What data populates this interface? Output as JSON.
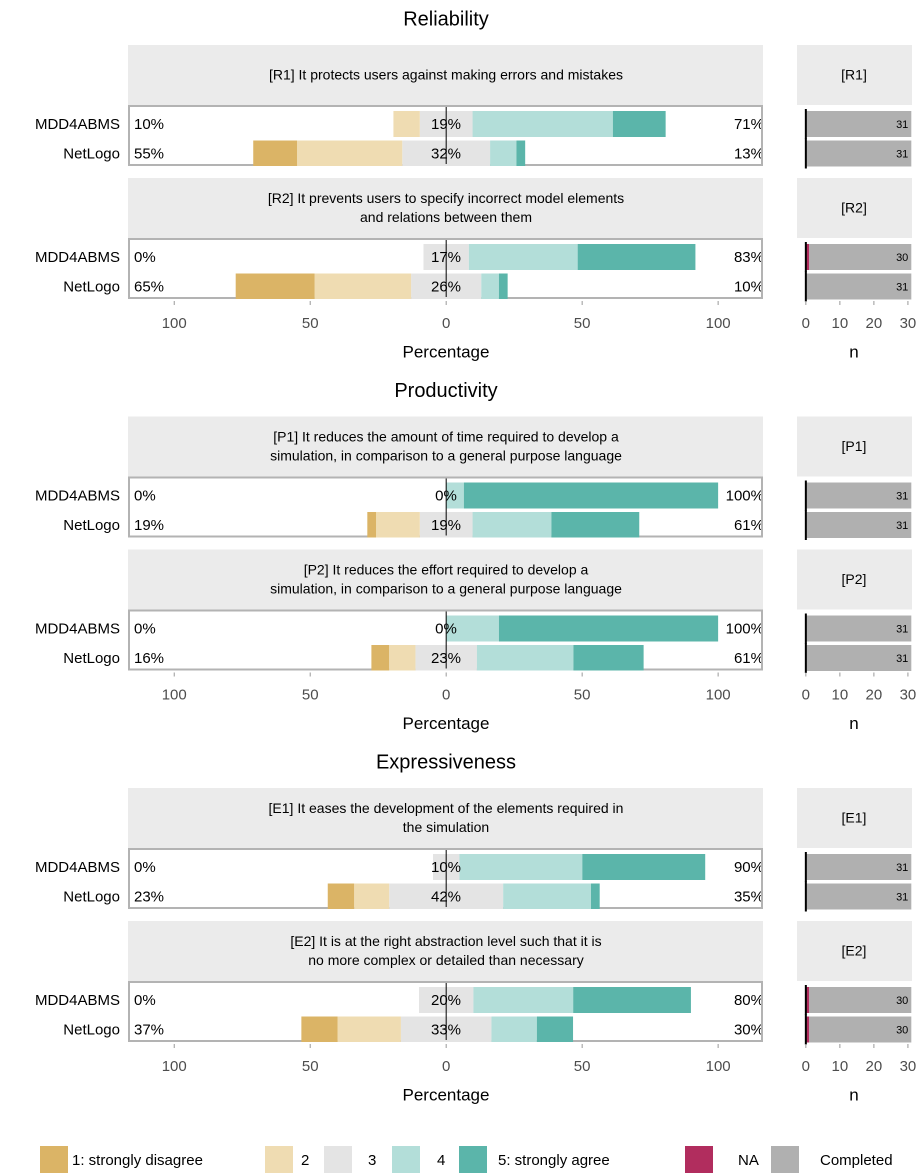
{
  "chart_data": [
    {
      "type": "likert",
      "title": "Reliability",
      "xlabel": "Percentage",
      "nlabel": "n",
      "xlim": [
        -117,
        116.5
      ],
      "xticks": [
        {
          "value": -100,
          "label": "100"
        },
        {
          "value": -50,
          "label": "50"
        },
        0,
        50,
        100
      ],
      "nlim": [
        -2.6,
        31.2
      ],
      "nticks": [
        0,
        10,
        20,
        30
      ],
      "items": [
        {
          "label": [
            "[R1] It protects users against making errors and mistakes"
          ],
          "short": "[R1]",
          "rows": [
            {
              "name": "MDD4ABMS",
              "values": [
                0,
                9.7,
                19.4,
                51.6,
                19.4
              ],
              "summary": [
                9.7,
                19.4,
                71.0
              ],
              "summary_labels": [
                "10%",
                "19%",
                "71%"
              ],
              "na": 0,
              "completed": 31
            },
            {
              "name": "NetLogo",
              "values": [
                16.1,
                38.7,
                32.3,
                9.7,
                3.2
              ],
              "summary": [
                54.8,
                32.3,
                12.9
              ],
              "summary_labels": [
                "55%",
                "32%",
                "13%"
              ],
              "na": 0,
              "completed": 31
            }
          ]
        },
        {
          "label": [
            "[R2] It prevents users to specify incorrect model elements",
            "and relations between them"
          ],
          "short": "[R2]",
          "rows": [
            {
              "name": "MDD4ABMS",
              "values": [
                0,
                0,
                16.7,
                40.0,
                43.3
              ],
              "summary": [
                0,
                16.7,
                83.3
              ],
              "summary_labels": [
                "0%",
                "17%",
                "83%"
              ],
              "na": 1,
              "completed": 30
            },
            {
              "name": "NetLogo",
              "values": [
                29.0,
                35.5,
                25.8,
                6.5,
                3.2
              ],
              "summary": [
                64.5,
                25.8,
                9.7
              ],
              "summary_labels": [
                "65%",
                "26%",
                "10%"
              ],
              "na": 0,
              "completed": 31
            }
          ]
        }
      ]
    },
    {
      "type": "likert",
      "title": "Productivity",
      "xlabel": "Percentage",
      "nlabel": "n",
      "xlim": [
        -117,
        116.5
      ],
      "xticks": [
        {
          "value": -100,
          "label": "100"
        },
        {
          "value": -50,
          "label": "50"
        },
        0,
        50,
        100
      ],
      "nlim": [
        -2.6,
        31.2
      ],
      "nticks": [
        0,
        10,
        20,
        30
      ],
      "items": [
        {
          "label": [
            "[P1] It reduces the amount of time required to develop a",
            "simulation, in comparison to a general purpose language"
          ],
          "short": "[P1]",
          "rows": [
            {
              "name": "MDD4ABMS",
              "values": [
                0,
                0,
                0,
                6.5,
                93.5
              ],
              "summary": [
                0,
                0,
                100
              ],
              "summary_labels": [
                "0%",
                "0%",
                "100%"
              ],
              "na": 0,
              "completed": 31
            },
            {
              "name": "NetLogo",
              "values": [
                3.2,
                16.1,
                19.4,
                29.0,
                32.3
              ],
              "summary": [
                19.4,
                19.4,
                61.3
              ],
              "summary_labels": [
                "19%",
                "19%",
                "61%"
              ],
              "na": 0,
              "completed": 31
            }
          ]
        },
        {
          "label": [
            "[P2] It reduces the effort required to develop a",
            "simulation, in comparison to a general purpose language"
          ],
          "short": "[P2]",
          "rows": [
            {
              "name": "MDD4ABMS",
              "values": [
                0,
                0,
                0,
                19.4,
                80.6
              ],
              "summary": [
                0,
                0,
                100
              ],
              "summary_labels": [
                "0%",
                "0%",
                "100%"
              ],
              "na": 0,
              "completed": 31
            },
            {
              "name": "NetLogo",
              "values": [
                6.5,
                9.7,
                22.6,
                35.5,
                25.8
              ],
              "summary": [
                16.1,
                22.6,
                61.3
              ],
              "summary_labels": [
                "16%",
                "23%",
                "61%"
              ],
              "na": 0,
              "completed": 31
            }
          ]
        }
      ]
    },
    {
      "type": "likert",
      "title": "Expressiveness",
      "xlabel": "Percentage",
      "nlabel": "n",
      "xlim": [
        -117,
        116.5
      ],
      "xticks": [
        {
          "value": -100,
          "label": "100"
        },
        {
          "value": -50,
          "label": "50"
        },
        0,
        50,
        100
      ],
      "nlim": [
        -2.6,
        31.2
      ],
      "nticks": [
        0,
        10,
        20,
        30
      ],
      "items": [
        {
          "label": [
            "[E1] It eases the development of the elements required in",
            "the simulation"
          ],
          "short": "[E1]",
          "rows": [
            {
              "name": "MDD4ABMS",
              "values": [
                0,
                0,
                9.7,
                45.2,
                45.2
              ],
              "summary": [
                0,
                9.7,
                90.3
              ],
              "summary_labels": [
                "0%",
                "10%",
                "90%"
              ],
              "na": 0,
              "completed": 31
            },
            {
              "name": "NetLogo",
              "values": [
                9.7,
                12.9,
                41.9,
                32.3,
                3.2
              ],
              "summary": [
                22.6,
                41.9,
                35.48
              ],
              "summary_labels": [
                "23%",
                "42%",
                "35%"
              ],
              "na": 0,
              "completed": 31
            }
          ]
        },
        {
          "label": [
            "[E2] It is at the right abstraction level such that it is",
            "no more complex or detailed than necessary"
          ],
          "short": "[E2]",
          "rows": [
            {
              "name": "MDD4ABMS",
              "values": [
                0,
                0,
                20.0,
                36.7,
                43.3
              ],
              "summary": [
                0,
                20.0,
                80.0
              ],
              "summary_labels": [
                "0%",
                "20%",
                "80%"
              ],
              "na": 1,
              "completed": 30
            },
            {
              "name": "NetLogo",
              "values": [
                13.3,
                23.3,
                33.3,
                16.7,
                13.3
              ],
              "summary": [
                36.7,
                33.3,
                30.0
              ],
              "summary_labels": [
                "37%",
                "33%",
                "30%"
              ],
              "na": 1,
              "completed": 30
            }
          ]
        }
      ]
    }
  ],
  "legend": {
    "labels": [
      "1: strongly disagree",
      "2",
      "3",
      "4",
      "5: strongly agree",
      "NA",
      "Completed"
    ],
    "colors": [
      "#dbb466",
      "#efdcb2",
      "#e4e4e4",
      "#b3ded9",
      "#5bb5aa",
      "#b12d5e",
      "#b0b0b0"
    ]
  }
}
